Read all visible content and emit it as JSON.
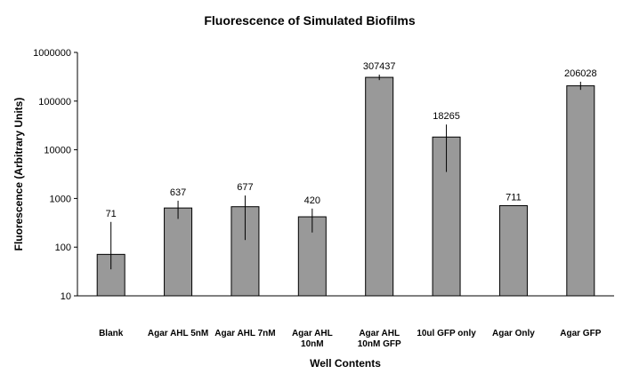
{
  "chart_data": {
    "type": "bar",
    "title": "Fluorescence of Simulated Biofilms",
    "xlabel": "Well Contents",
    "ylabel": "Fluorescence (Arbitrary Units)",
    "yscale": "log",
    "ylim": [
      10,
      1000000
    ],
    "yticks": [
      "10",
      "100",
      "1000",
      "10000",
      "100000",
      "1000000"
    ],
    "grid": false,
    "legend": "none",
    "bar_color": "#999999",
    "categories": [
      [
        "Blank"
      ],
      [
        "Agar AHL 5nM"
      ],
      [
        "Agar AHL 7nM"
      ],
      [
        "Agar AHL",
        "10nM"
      ],
      [
        "Agar AHL",
        "10nM GFP"
      ],
      [
        "10ul GFP only"
      ],
      [
        "Agar Only"
      ],
      [
        "Agar GFP"
      ]
    ],
    "values": [
      71,
      637,
      677,
      420,
      307437,
      18265,
      711,
      206028
    ],
    "data_labels": [
      "71",
      "637",
      "677",
      "420",
      "307437",
      "18265",
      "711",
      "206028"
    ],
    "error_bars": [
      [
        35,
        330
      ],
      [
        380,
        900
      ],
      [
        140,
        1150
      ],
      [
        200,
        620
      ],
      [
        270000,
        350000
      ],
      [
        3500,
        33000
      ],
      [
        711,
        711
      ],
      [
        170000,
        250000
      ]
    ]
  }
}
